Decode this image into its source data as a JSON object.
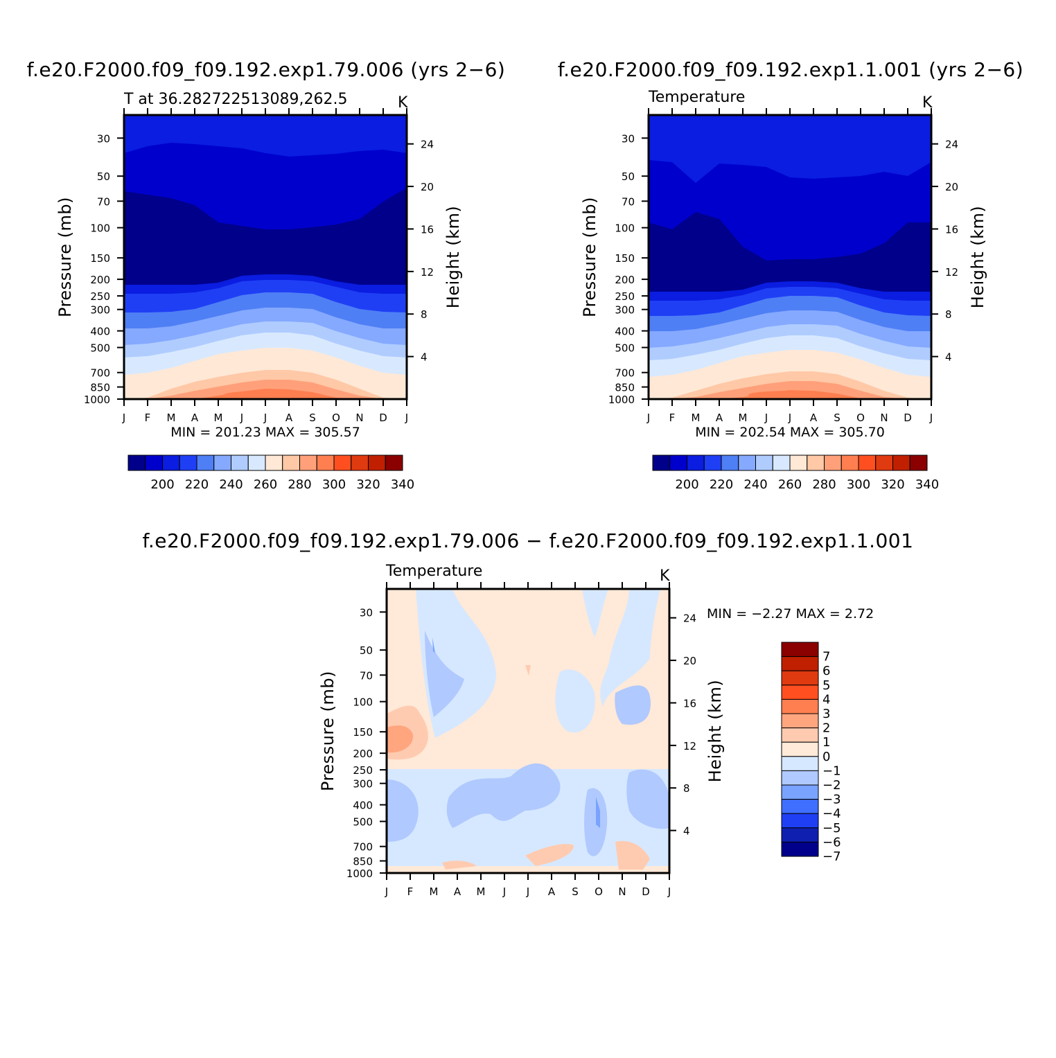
{
  "colors": {
    "abs_levels": [
      "#00008b",
      "#0000cd",
      "#0a1de0",
      "#1f3ff5",
      "#4f7ff5",
      "#85a9ff",
      "#b0ccff",
      "#d8e9ff",
      "#ffe8d6",
      "#ffc8a6",
      "#ffa07a",
      "#ff7f50",
      "#ff4f20",
      "#e03a10",
      "#c02000",
      "#8b0000"
    ],
    "diff_levels": [
      "#00008b",
      "#0f1fb0",
      "#1f3ff5",
      "#3f6fff",
      "#79a3ff",
      "#b0c9ff",
      "#d6e8ff",
      "#ffe9d8",
      "#ffcbb0",
      "#ffa67f",
      "#ff7f50",
      "#ff4f20",
      "#e03a10",
      "#c02000",
      "#8b0000"
    ]
  },
  "chart_data": [
    {
      "type": "heatmap",
      "title": "f.e20.F2000.f09_f09.192.exp1.79.006 (yrs 2−6)",
      "subtitle_left": "T at 36.282722513089,262.5",
      "units": "K",
      "xlabel": "",
      "ylabel": "Pressure (mb)",
      "ylabel_right": "Height (km)",
      "x_ticks": [
        "J",
        "F",
        "M",
        "A",
        "M",
        "J",
        "J",
        "A",
        "S",
        "O",
        "N",
        "D",
        "J"
      ],
      "y_ticks": [
        "30",
        "50",
        "70",
        "100",
        "150",
        "200",
        "250",
        "300",
        "400",
        "500",
        "700",
        "850",
        "1000"
      ],
      "y_right_ticks": [
        "24",
        "20",
        "16",
        "12",
        "8",
        "4"
      ],
      "min_max_text": "MIN = 201.23 MAX = 305.57",
      "min": 201.23,
      "max": 305.57,
      "colorbar_ticks": [
        "200",
        "220",
        "240",
        "260",
        "280",
        "300",
        "320",
        "340"
      ],
      "bands": [
        {
          "level": 2,
          "edge_top": [
            12,
            12,
            12,
            12,
            12,
            12,
            12,
            12,
            12,
            12,
            12,
            12,
            12
          ]
        },
        {
          "level": 1,
          "edge_top": [
            55,
            45,
            40,
            42,
            45,
            48,
            55,
            60,
            58,
            56,
            52,
            50,
            55
          ]
        },
        {
          "level": 0,
          "edge_top": [
            110,
            115,
            120,
            130,
            155,
            160,
            165,
            165,
            162,
            158,
            150,
            125,
            105
          ]
        },
        {
          "level": 2,
          "edge_top": [
            245,
            245,
            245,
            245,
            242,
            232,
            230,
            230,
            232,
            240,
            245,
            245,
            245
          ]
        },
        {
          "level": 3,
          "edge_top": [
            258,
            258,
            258,
            256,
            250,
            240,
            238,
            238,
            240,
            248,
            256,
            258,
            258
          ]
        },
        {
          "level": 4,
          "edge_top": [
            285,
            285,
            284,
            280,
            270,
            260,
            256,
            256,
            258,
            270,
            280,
            284,
            285
          ]
        },
        {
          "level": 5,
          "edge_top": [
            308,
            308,
            305,
            298,
            290,
            282,
            278,
            278,
            280,
            292,
            302,
            308,
            308
          ]
        },
        {
          "level": 6,
          "edge_top": [
            332,
            330,
            325,
            318,
            310,
            302,
            298,
            298,
            300,
            312,
            322,
            330,
            332
          ]
        },
        {
          "level": 7,
          "edge_top": [
            350,
            348,
            342,
            335,
            326,
            318,
            314,
            314,
            318,
            330,
            340,
            348,
            350
          ]
        },
        {
          "level": 8,
          "edge_top": [
            375,
            372,
            365,
            355,
            345,
            340,
            336,
            336,
            340,
            350,
            362,
            372,
            375
          ]
        },
        {
          "level": 9,
          "edge_top": [
            410,
            408,
            395,
            385,
            378,
            372,
            368,
            368,
            372,
            382,
            395,
            408,
            410
          ]
        },
        {
          "level": 10,
          "edge_top": [
            410,
            410,
            405,
            398,
            392,
            386,
            382,
            382,
            386,
            396,
            405,
            410,
            410
          ]
        },
        {
          "level": 11,
          "edge_top": [
            410,
            410,
            410,
            410,
            405,
            399,
            395,
            396,
            400,
            408,
            410,
            410,
            410
          ]
        }
      ]
    },
    {
      "type": "heatmap",
      "title": "f.e20.F2000.f09_f09.192.exp1.1.001 (yrs 2−6)",
      "subtitle_left": "Temperature",
      "units": "K",
      "xlabel": "",
      "ylabel": "Pressure (mb)",
      "ylabel_right": "Height (km)",
      "x_ticks": [
        "J",
        "F",
        "M",
        "A",
        "M",
        "J",
        "J",
        "A",
        "S",
        "O",
        "N",
        "D",
        "J"
      ],
      "y_ticks": [
        "30",
        "50",
        "70",
        "100",
        "150",
        "200",
        "250",
        "300",
        "400",
        "500",
        "700",
        "850",
        "1000"
      ],
      "y_right_ticks": [
        "24",
        "20",
        "16",
        "12",
        "8",
        "4"
      ],
      "min_max_text": "MIN = 202.54 MAX = 305.70",
      "min": 202.54,
      "max": 305.7,
      "colorbar_ticks": [
        "200",
        "220",
        "240",
        "260",
        "280",
        "300",
        "320",
        "340"
      ],
      "bands": [
        {
          "level": 2,
          "edge_top": [
            12,
            12,
            12,
            12,
            12,
            12,
            12,
            12,
            12,
            12,
            12,
            12,
            12
          ]
        },
        {
          "level": 1,
          "edge_top": [
            65,
            68,
            98,
            70,
            72,
            75,
            90,
            92,
            90,
            88,
            82,
            88,
            68
          ]
        },
        {
          "level": 0,
          "edge_top": [
            155,
            165,
            140,
            150,
            190,
            210,
            208,
            208,
            205,
            200,
            185,
            155,
            155
          ]
        },
        {
          "level": 2,
          "edge_top": [
            255,
            255,
            255,
            255,
            252,
            242,
            240,
            240,
            242,
            250,
            255,
            255,
            255
          ]
        },
        {
          "level": 3,
          "edge_top": [
            268,
            268,
            268,
            266,
            260,
            250,
            248,
            248,
            250,
            258,
            266,
            268,
            268
          ]
        },
        {
          "level": 4,
          "edge_top": [
            290,
            290,
            289,
            285,
            275,
            265,
            261,
            261,
            263,
            275,
            285,
            289,
            290
          ]
        },
        {
          "level": 5,
          "edge_top": [
            312,
            312,
            309,
            302,
            294,
            286,
            282,
            282,
            284,
            296,
            306,
            312,
            312
          ]
        },
        {
          "level": 6,
          "edge_top": [
            336,
            334,
            329,
            322,
            314,
            306,
            302,
            302,
            304,
            316,
            326,
            334,
            336
          ]
        },
        {
          "level": 7,
          "edge_top": [
            354,
            352,
            346,
            339,
            330,
            322,
            318,
            318,
            322,
            334,
            344,
            352,
            354
          ]
        },
        {
          "level": 8,
          "edge_top": [
            378,
            375,
            368,
            358,
            348,
            343,
            339,
            339,
            343,
            353,
            365,
            375,
            378
          ]
        },
        {
          "level": 9,
          "edge_top": [
            410,
            408,
            398,
            388,
            380,
            374,
            370,
            370,
            374,
            385,
            398,
            408,
            410
          ]
        },
        {
          "level": 10,
          "edge_top": [
            410,
            410,
            407,
            400,
            394,
            388,
            384,
            384,
            388,
            398,
            407,
            410,
            410
          ]
        },
        {
          "level": 11,
          "edge_top": [
            410,
            410,
            410,
            410,
            407,
            401,
            397,
            398,
            402,
            409,
            410,
            410,
            410
          ]
        }
      ]
    },
    {
      "type": "heatmap",
      "title": "f.e20.F2000.f09_f09.192.exp1.79.006 − f.e20.F2000.f09_f09.192.exp1.1.001",
      "subtitle_left": "Temperature",
      "units": "K",
      "xlabel": "",
      "ylabel": "Pressure (mb)",
      "ylabel_right": "Height (km)",
      "x_ticks": [
        "J",
        "F",
        "M",
        "A",
        "M",
        "J",
        "J",
        "A",
        "S",
        "O",
        "N",
        "D",
        "J"
      ],
      "y_ticks": [
        "30",
        "50",
        "70",
        "100",
        "150",
        "200",
        "250",
        "300",
        "400",
        "500",
        "700",
        "850",
        "1000"
      ],
      "y_right_ticks": [
        "24",
        "20",
        "16",
        "12",
        "8",
        "4"
      ],
      "min_max_text": "MIN = −2.27 MAX = 2.72",
      "min": -2.27,
      "max": 2.72,
      "colorbar_ticks": [
        "7",
        "6",
        "5",
        "4",
        "3",
        "2",
        "1",
        "0",
        "−1",
        "−2",
        "−3",
        "−4",
        "−5",
        "−6",
        "−7"
      ]
    }
  ]
}
